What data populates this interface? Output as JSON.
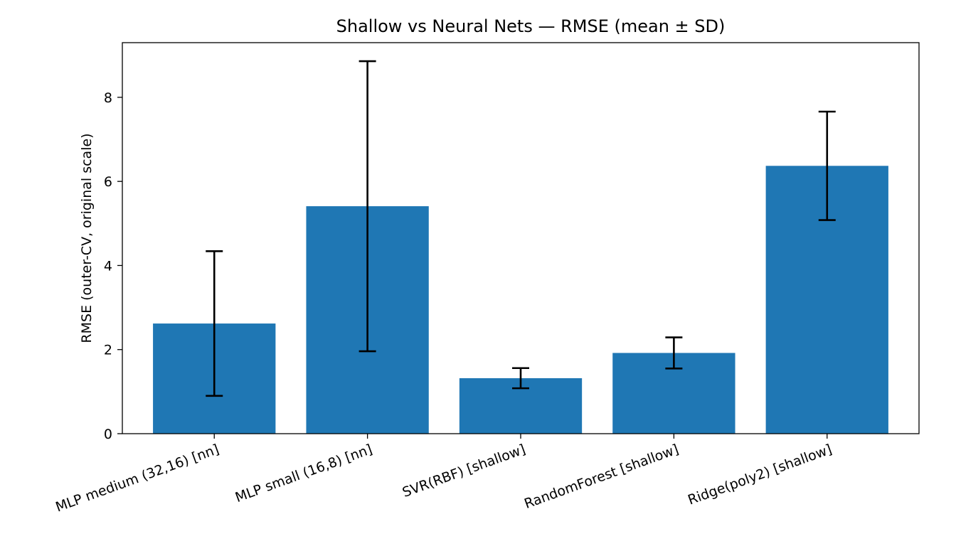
{
  "chart_data": {
    "type": "bar",
    "title": "Shallow vs Neural Nets — RMSE (mean ± SD)",
    "xlabel": "",
    "ylabel": "RMSE (outer-CV, original scale)",
    "categories": [
      "MLP medium (32,16) [nn]",
      "MLP small (16,8) [nn]",
      "SVR(RBF) [shallow]",
      "RandomForest [shallow]",
      "Ridge(poly2) [shallow]"
    ],
    "values": [
      2.62,
      5.41,
      1.32,
      1.92,
      6.37
    ],
    "error_sd": [
      1.72,
      3.45,
      0.24,
      0.37,
      1.29
    ],
    "ylim": [
      0,
      9.3
    ],
    "yticks": [
      0,
      2,
      4,
      6,
      8
    ],
    "ytick_labels": [
      "0",
      "2",
      "4",
      "6",
      "8"
    ],
    "bar_color": "#1f77b4",
    "error_color": "#000000",
    "grid": false,
    "legend": "none"
  }
}
